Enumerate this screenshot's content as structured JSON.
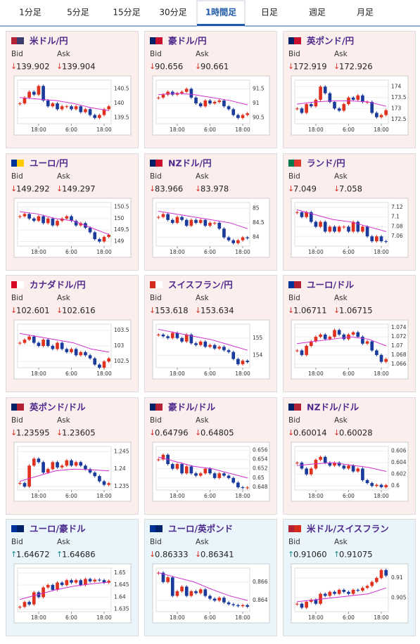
{
  "tabs": {
    "items": [
      "1分足",
      "5分足",
      "15分足",
      "30分足",
      "1時間足",
      "日足",
      "週足",
      "月足"
    ],
    "active": 4
  },
  "cards": [
    {
      "title": "米ドル/円",
      "bid_label": "Bid",
      "ask_label": "Ask",
      "arrow": "↓",
      "arrow_color": "#d9302a",
      "bid": "139.902",
      "ask": "139.904",
      "chart": {
        "ylim": [
          139.3,
          140.8
        ],
        "yticks": [
          139.5,
          140,
          140.5
        ],
        "xticks": [
          {
            "value": 4,
            "label": "18:00"
          },
          {
            "value": 11,
            "label": "6:00"
          },
          {
            "value": 18,
            "label": "18:00"
          }
        ],
        "values": [
          140.0,
          140.2,
          140.4,
          140.3,
          140.6,
          140.1,
          139.9,
          140.0,
          139.8,
          139.9,
          139.9,
          139.8,
          139.9,
          139.7,
          139.8,
          139.6,
          139.5,
          139.6,
          139.8,
          139.9
        ],
        "ma": [
          140.2,
          140.15,
          140.1,
          140.0,
          139.85,
          139.75
        ]
      }
    },
    {
      "title": "豪ドル/円",
      "bid_label": "Bid",
      "ask_label": "Ask",
      "arrow": "↓",
      "arrow_color": "#d9302a",
      "bid": "90.656",
      "ask": "90.661",
      "chart": {
        "ylim": [
          90.3,
          91.8
        ],
        "yticks": [
          90.5,
          91,
          91.5
        ],
        "xticks": [
          {
            "value": 4,
            "label": "18:00"
          },
          {
            "value": 11,
            "label": "6:00"
          },
          {
            "value": 18,
            "label": "18:00"
          }
        ],
        "values": [
          91.2,
          91.3,
          91.4,
          91.3,
          91.35,
          91.4,
          91.5,
          91.2,
          91.0,
          90.9,
          91.1,
          91.0,
          91.05,
          91.1,
          90.9,
          90.8,
          90.6,
          90.5,
          90.6,
          90.66
        ],
        "ma": [
          91.3,
          91.35,
          91.3,
          91.2,
          91.1,
          90.95
        ]
      }
    },
    {
      "title": "英ポンド/円",
      "bid_label": "Bid",
      "ask_label": "Ask",
      "arrow": "↓",
      "arrow_color": "#d9302a",
      "bid": "172.919",
      "ask": "172.926",
      "chart": {
        "ylim": [
          172.3,
          174.3
        ],
        "yticks": [
          172.5,
          173,
          173.5,
          174
        ],
        "xticks": [
          {
            "value": 4,
            "label": "18:00"
          },
          {
            "value": 11,
            "label": "6:00"
          },
          {
            "value": 18,
            "label": "18:00"
          }
        ],
        "values": [
          173.0,
          172.8,
          173.2,
          173.1,
          173.4,
          174.0,
          173.7,
          173.3,
          173.0,
          172.9,
          173.2,
          173.5,
          173.4,
          173.6,
          173.3,
          173.3,
          172.8,
          172.6,
          172.7,
          172.92
        ],
        "ma": [
          173.2,
          173.3,
          173.35,
          173.35,
          173.3,
          173.1
        ]
      }
    },
    {
      "title": "ユーロ/円",
      "bid_label": "Bid",
      "ask_label": "Ask",
      "arrow": "↓",
      "arrow_color": "#d9302a",
      "bid": "149.292",
      "ask": "149.297",
      "chart": {
        "ylim": [
          148.8,
          150.7
        ],
        "yticks": [
          149,
          149.5,
          150,
          150.5
        ],
        "xticks": [
          {
            "value": 4,
            "label": "18:00"
          },
          {
            "value": 11,
            "label": "6:00"
          },
          {
            "value": 18,
            "label": "18:00"
          }
        ],
        "values": [
          150.1,
          150.2,
          150.0,
          149.9,
          150.1,
          149.8,
          150.0,
          149.7,
          149.9,
          150.0,
          150.1,
          149.9,
          149.7,
          149.8,
          149.6,
          149.4,
          149.1,
          149.0,
          149.2,
          149.29
        ],
        "ma": [
          150.3,
          150.2,
          150.0,
          149.9,
          149.6,
          149.3
        ]
      }
    },
    {
      "title": "NZドル/円",
      "bid_label": "Bid",
      "ask_label": "Ask",
      "arrow": "↓",
      "arrow_color": "#d9302a",
      "bid": "83.966",
      "ask": "83.978",
      "chart": {
        "ylim": [
          83.7,
          85.2
        ],
        "yticks": [
          84,
          84.5,
          85
        ],
        "xticks": [
          {
            "value": 4,
            "label": "18:00"
          },
          {
            "value": 11,
            "label": "6:00"
          },
          {
            "value": 18,
            "label": "18:00"
          }
        ],
        "values": [
          84.7,
          84.8,
          84.6,
          84.5,
          84.7,
          84.6,
          84.4,
          84.6,
          84.5,
          84.6,
          84.4,
          84.5,
          84.5,
          84.3,
          84.0,
          83.9,
          83.8,
          83.9,
          84.0,
          83.97
        ],
        "ma": [
          84.9,
          84.8,
          84.7,
          84.6,
          84.5,
          84.3
        ]
      }
    },
    {
      "title": "ランド/円",
      "bid_label": "Bid",
      "ask_label": "Ask",
      "arrow": "↓",
      "arrow_color": "#d9302a",
      "bid": "7.049",
      "ask": "7.058",
      "chart": {
        "ylim": [
          7.04,
          7.13
        ],
        "yticks": [
          7.06,
          7.08,
          7.1,
          7.12
        ],
        "xticks": [
          {
            "value": 4,
            "label": "18:00"
          },
          {
            "value": 11,
            "label": "6:00"
          },
          {
            "value": 18,
            "label": "18:00"
          }
        ],
        "values": [
          7.11,
          7.1,
          7.11,
          7.09,
          7.08,
          7.09,
          7.07,
          7.08,
          7.07,
          7.08,
          7.08,
          7.07,
          7.09,
          7.07,
          7.08,
          7.06,
          7.05,
          7.06,
          7.05,
          7.049
        ],
        "ma": [
          7.115,
          7.105,
          7.095,
          7.09,
          7.08,
          7.07
        ]
      }
    },
    {
      "title": "カナダドル/円",
      "bid_label": "Bid",
      "ask_label": "Ask",
      "arrow": "↓",
      "arrow_color": "#d9302a",
      "bid": "102.601",
      "ask": "102.616",
      "chart": {
        "ylim": [
          102.3,
          103.7
        ],
        "yticks": [
          102.5,
          103,
          103.5
        ],
        "xticks": [
          {
            "value": 4,
            "label": "18:00"
          },
          {
            "value": 11,
            "label": "6:00"
          },
          {
            "value": 18,
            "label": "18:00"
          }
        ],
        "values": [
          103.1,
          103.2,
          103.3,
          103.1,
          103.0,
          103.2,
          103.0,
          102.9,
          103.1,
          102.9,
          102.8,
          102.9,
          102.7,
          102.8,
          102.7,
          102.6,
          102.4,
          102.3,
          102.5,
          102.6
        ],
        "ma": [
          103.4,
          103.3,
          103.2,
          103.1,
          102.9,
          102.8
        ]
      }
    },
    {
      "title": "スイスフラン/円",
      "bid_label": "Bid",
      "ask_label": "Ask",
      "arrow": "↓",
      "arrow_color": "#d9302a",
      "bid": "153.618",
      "ask": "153.634",
      "chart": {
        "ylim": [
          153.3,
          155.8
        ],
        "yticks": [
          154,
          155
        ],
        "xticks": [
          {
            "value": 4,
            "label": "18:00"
          },
          {
            "value": 11,
            "label": "6:00"
          },
          {
            "value": 18,
            "label": "18:00"
          }
        ],
        "values": [
          155.2,
          155.1,
          155.0,
          155.3,
          155.0,
          154.8,
          155.2,
          154.7,
          154.6,
          154.8,
          154.5,
          154.6,
          154.4,
          154.5,
          154.3,
          154.2,
          153.8,
          153.5,
          153.7,
          153.62
        ],
        "ma": [
          155.5,
          155.3,
          155.1,
          154.9,
          154.6,
          154.3
        ]
      }
    },
    {
      "title": "ユーロ/ドル",
      "bid_label": "Bid",
      "ask_label": "Ask",
      "arrow": "↓",
      "arrow_color": "#d9302a",
      "bid": "1.06711",
      "ask": "1.06715",
      "chart": {
        "ylim": [
          1.0652,
          1.0748
        ],
        "yticks": [
          1.066,
          1.068,
          1.07,
          1.072,
          1.074
        ],
        "xticks": [
          {
            "value": 4,
            "label": "18:00"
          },
          {
            "value": 11,
            "label": "6:00"
          },
          {
            "value": 18,
            "label": "18:00"
          }
        ],
        "values": [
          1.069,
          1.068,
          1.07,
          1.071,
          1.072,
          1.0725,
          1.0715,
          1.072,
          1.0735,
          1.0725,
          1.0715,
          1.0725,
          1.073,
          1.072,
          1.0705,
          1.071,
          1.069,
          1.068,
          1.0665,
          1.06711
        ],
        "ma": [
          1.0705,
          1.071,
          1.0715,
          1.072,
          1.0715,
          1.07
        ]
      }
    },
    {
      "title": "英ポンド/ドル",
      "bid_label": "Bid",
      "ask_label": "Ask",
      "arrow": "↓",
      "arrow_color": "#d9302a",
      "bid": "1.23595",
      "ask": "1.23605",
      "chart": {
        "ylim": [
          1.234,
          1.2465
        ],
        "yticks": [
          1.235,
          1.24,
          1.245
        ],
        "xticks": [
          {
            "value": 4,
            "label": "18:00"
          },
          {
            "value": 11,
            "label": "6:00"
          },
          {
            "value": 18,
            "label": "18:00"
          }
        ],
        "values": [
          1.236,
          1.235,
          1.241,
          1.243,
          1.242,
          1.239,
          1.24,
          1.242,
          1.2405,
          1.241,
          1.2425,
          1.241,
          1.242,
          1.241,
          1.24,
          1.239,
          1.238,
          1.2365,
          1.2355,
          1.23595
        ],
        "ma": [
          1.2365,
          1.238,
          1.2395,
          1.24,
          1.2398,
          1.2395
        ]
      }
    },
    {
      "title": "豪ドル/ドル",
      "bid_label": "Bid",
      "ask_label": "Ask",
      "arrow": "↓",
      "arrow_color": "#d9302a",
      "bid": "0.64796",
      "ask": "0.64805",
      "chart": {
        "ylim": [
          0.6474,
          0.6568
        ],
        "yticks": [
          0.648,
          0.65,
          0.652,
          0.654,
          0.656
        ],
        "xticks": [
          {
            "value": 4,
            "label": "18:00"
          },
          {
            "value": 11,
            "label": "6:00"
          },
          {
            "value": 18,
            "label": "18:00"
          }
        ],
        "values": [
          0.654,
          0.655,
          0.653,
          0.652,
          0.653,
          0.651,
          0.6525,
          0.651,
          0.6505,
          0.651,
          0.652,
          0.651,
          0.65,
          0.651,
          0.6505,
          0.65,
          0.649,
          0.648,
          0.6479,
          0.64796
        ],
        "ma": [
          0.6545,
          0.6535,
          0.6525,
          0.652,
          0.651,
          0.65
        ]
      }
    },
    {
      "title": "NZドル/ドル",
      "bid_label": "Bid",
      "ask_label": "Ask",
      "arrow": "↓",
      "arrow_color": "#d9302a",
      "bid": "0.60014",
      "ask": "0.60028",
      "chart": {
        "ylim": [
          0.5993,
          0.6068
        ],
        "yticks": [
          0.6,
          0.602,
          0.604,
          0.606
        ],
        "xticks": [
          {
            "value": 4,
            "label": "18:00"
          },
          {
            "value": 11,
            "label": "6:00"
          },
          {
            "value": 18,
            "label": "18:00"
          }
        ],
        "values": [
          0.604,
          0.603,
          0.602,
          0.603,
          0.6045,
          0.605,
          0.604,
          0.6035,
          0.604,
          0.6035,
          0.603,
          0.6035,
          0.6025,
          0.603,
          0.601,
          0.6005,
          0.6,
          0.6002,
          0.5998,
          0.60014
        ],
        "ma": [
          0.6035,
          0.6038,
          0.604,
          0.6036,
          0.6032,
          0.6025
        ]
      }
    },
    {
      "title": "ユーロ/豪ドル",
      "bid_label": "Bid",
      "ask_label": "Ask",
      "arrow": "↑",
      "arrow_color": "#1a8a8a",
      "bid": "1.64672",
      "ask": "1.64686",
      "chart": {
        "ylim": [
          1.634,
          1.652
        ],
        "yticks": [
          1.635,
          1.64,
          1.645,
          1.65
        ],
        "xticks": [
          {
            "value": 4,
            "label": "18:00"
          },
          {
            "value": 11,
            "label": "6:00"
          },
          {
            "value": 18,
            "label": "18:00"
          }
        ],
        "values": [
          1.636,
          1.638,
          1.637,
          1.642,
          1.64,
          1.644,
          1.645,
          1.643,
          1.646,
          1.645,
          1.647,
          1.646,
          1.647,
          1.645,
          1.6475,
          1.6465,
          1.6472,
          1.647,
          1.646,
          1.64672
        ],
        "ma": [
          1.639,
          1.641,
          1.643,
          1.6445,
          1.6455,
          1.6462
        ]
      }
    },
    {
      "title": "ユーロ/英ポンド",
      "bid_label": "Bid",
      "ask_label": "Ask",
      "arrow": "↓",
      "arrow_color": "#d9302a",
      "bid": "0.86333",
      "ask": "0.86341",
      "chart": {
        "ylim": [
          0.8628,
          0.8675
        ],
        "yticks": [
          0.864,
          0.866
        ],
        "xticks": [
          {
            "value": 4,
            "label": "18:00"
          },
          {
            "value": 11,
            "label": "6:00"
          },
          {
            "value": 18,
            "label": "18:00"
          }
        ],
        "values": [
          0.867,
          0.866,
          0.8665,
          0.8645,
          0.865,
          0.8655,
          0.8645,
          0.865,
          0.8648,
          0.8652,
          0.8645,
          0.8642,
          0.864,
          0.8643,
          0.8638,
          0.8636,
          0.8635,
          0.8634,
          0.8635,
          0.86333
        ],
        "ma": [
          0.867,
          0.8665,
          0.866,
          0.8652,
          0.8645,
          0.864
        ]
      }
    },
    {
      "title": "米ドル/スイスフラン",
      "bid_label": "Bid",
      "ask_label": "Ask",
      "arrow": "↑",
      "arrow_color": "#1a8a8a",
      "bid": "0.91060",
      "ask": "0.91075",
      "chart": {
        "ylim": [
          0.9015,
          0.9125
        ],
        "yticks": [
          0.905,
          0.91
        ],
        "xticks": [
          {
            "value": 4,
            "label": "18:00"
          },
          {
            "value": 11,
            "label": "6:00"
          },
          {
            "value": 18,
            "label": "18:00"
          }
        ],
        "values": [
          0.9035,
          0.9025,
          0.904,
          0.9045,
          0.9035,
          0.906,
          0.9055,
          0.9065,
          0.906,
          0.907,
          0.9065,
          0.906,
          0.907,
          0.9068,
          0.9075,
          0.908,
          0.909,
          0.91,
          0.912,
          0.9106
        ],
        "ma": [
          0.904,
          0.9045,
          0.905,
          0.9055,
          0.906,
          0.9075
        ]
      }
    }
  ]
}
